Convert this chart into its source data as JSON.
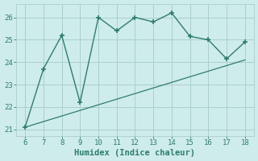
{
  "x": [
    6,
    7,
    8,
    9,
    10,
    11,
    12,
    13,
    14,
    15,
    16,
    17,
    18
  ],
  "y_curve": [
    21.1,
    23.7,
    25.2,
    22.2,
    26.0,
    25.4,
    26.0,
    25.8,
    26.2,
    25.15,
    25.0,
    24.15,
    24.9
  ],
  "trend_x": [
    6,
    18
  ],
  "trend_y": [
    21.1,
    24.1
  ],
  "xlim": [
    5.5,
    18.5
  ],
  "ylim": [
    20.7,
    26.6
  ],
  "xticks": [
    6,
    7,
    8,
    9,
    10,
    11,
    12,
    13,
    14,
    15,
    16,
    17,
    18
  ],
  "yticks": [
    21,
    22,
    23,
    24,
    25,
    26
  ],
  "xlabel": "Humidex (Indice chaleur)",
  "line_color": "#2e7d6e",
  "bg_color": "#ceecea",
  "grid_color": "#aacfcc",
  "tick_fontsize": 6.5,
  "xlabel_fontsize": 7.5
}
